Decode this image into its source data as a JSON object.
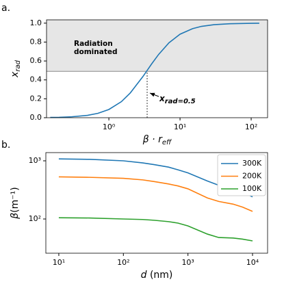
{
  "chart_data": [
    {
      "type": "line",
      "panel_label": "a.",
      "xlabel": {
        "text": "β · r",
        "sub": "eff"
      },
      "ylabel": {
        "text": "x",
        "sub": "rad"
      },
      "xscale": "log",
      "xlim": [
        0.133,
        170
      ],
      "ylim": [
        0,
        1.035
      ],
      "xticks": [
        {
          "value": 1,
          "label": "10⁰"
        },
        {
          "value": 10,
          "label": "10¹"
        },
        {
          "value": 100,
          "label": "10²"
        }
      ],
      "yticks": [
        {
          "value": 0,
          "label": "0.0"
        },
        {
          "value": 0.2,
          "label": "0.2"
        },
        {
          "value": 0.4,
          "label": "0.4"
        },
        {
          "value": 0.6,
          "label": "0.6"
        },
        {
          "value": 0.8,
          "label": "0.8"
        },
        {
          "value": 1,
          "label": "1.0"
        }
      ],
      "x": [
        0.15,
        0.2,
        0.3,
        0.5,
        0.7,
        1,
        1.5,
        2,
        3,
        3.45,
        4,
        5,
        7,
        10,
        15,
        20,
        30,
        50,
        100,
        130
      ],
      "values": [
        0.003,
        0.004,
        0.01,
        0.025,
        0.046,
        0.087,
        0.17,
        0.262,
        0.434,
        0.5,
        0.57,
        0.669,
        0.793,
        0.883,
        0.942,
        0.966,
        0.984,
        0.994,
        0.998,
        0.999
      ],
      "color": "#1f77b4",
      "hline": 0.49,
      "vline": 3.45,
      "region_label": [
        "Radiation",
        "dominated"
      ],
      "annotation": {
        "text": "x",
        "sub": "rad=0.5"
      }
    },
    {
      "type": "line",
      "panel_label": "b.",
      "xlabel": {
        "text": "d",
        "rest": " (nm)"
      },
      "ylabel": {
        "text": "β",
        "rest": "(m⁻¹)"
      },
      "xscale": "log",
      "yscale": "log",
      "xlim": [
        6.3,
        17100
      ],
      "ylim": [
        25.8,
        1384
      ],
      "xticks": [
        {
          "value": 10,
          "label": "10¹"
        },
        {
          "value": 100,
          "label": "10²"
        },
        {
          "value": 1000,
          "label": "10³"
        },
        {
          "value": 10000,
          "label": "10⁴"
        }
      ],
      "yticks": [
        {
          "value": 100,
          "label": "10²"
        },
        {
          "value": 1000,
          "label": "10³"
        }
      ],
      "x": [
        10,
        30,
        100,
        200,
        300,
        500,
        700,
        1000,
        2000,
        3000,
        5000,
        7000,
        10000
      ],
      "series": [
        {
          "name": "300K",
          "color": "#1f77b4",
          "values": [
            1080,
            1060,
            1000,
            920,
            860,
            780,
            700,
            620,
            450,
            380,
            330,
            290,
            240
          ]
        },
        {
          "name": "200K",
          "color": "#ff7f0e",
          "values": [
            530,
            520,
            500,
            470,
            440,
            400,
            370,
            330,
            230,
            200,
            180,
            160,
            135
          ]
        },
        {
          "name": "100K",
          "color": "#2ca02c",
          "values": [
            105,
            104,
            100,
            98,
            95,
            90,
            85,
            76,
            55,
            48,
            47,
            45,
            42
          ]
        }
      ],
      "legend": "upper right"
    }
  ]
}
